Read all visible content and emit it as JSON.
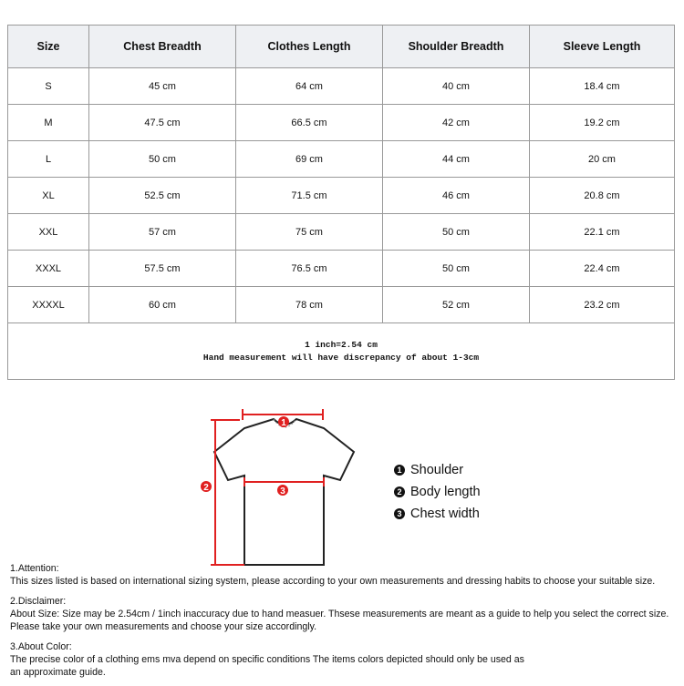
{
  "table": {
    "headers": [
      "Size",
      "Chest Breadth",
      "Clothes Length",
      "Shoulder Breadth",
      "Sleeve Length"
    ],
    "rows": [
      [
        "S",
        "45 cm",
        "64 cm",
        "40 cm",
        "18.4 cm"
      ],
      [
        "M",
        "47.5 cm",
        "66.5 cm",
        "42 cm",
        "19.2 cm"
      ],
      [
        "L",
        "50 cm",
        "69 cm",
        "44 cm",
        "20 cm"
      ],
      [
        "XL",
        "52.5 cm",
        "71.5 cm",
        "46 cm",
        "20.8 cm"
      ],
      [
        "XXL",
        "57 cm",
        "75 cm",
        "50 cm",
        "22.1 cm"
      ],
      [
        "XXXL",
        "57.5 cm",
        "76.5 cm",
        "50 cm",
        "22.4 cm"
      ],
      [
        "XXXXL",
        "60 cm",
        "78 cm",
        "52 cm",
        "23.2 cm"
      ]
    ],
    "note_line1": "1 inch=2.54 cm",
    "note_line2": "Hand measurement will have discrepancy of about 1-3cm"
  },
  "diagram": {
    "markers": [
      "1",
      "2",
      "3"
    ],
    "legend": [
      {
        "num": "1",
        "label": "Shoulder"
      },
      {
        "num": "2",
        "label": "Body length"
      },
      {
        "num": "3",
        "label": "Chest width"
      }
    ],
    "accent": "#e02020"
  },
  "notes": [
    {
      "title": "1.Attention:",
      "lines": [
        "This sizes listed is based on international sizing system, please according to your own measurements and dressing habits to choose your suitable size."
      ]
    },
    {
      "title": "2.Disclaimer:",
      "lines": [
        "About Size: Size may be 2.54cm / 1inch inaccuracy due to hand measuer. Thsese measurements are meant as a guide to help you select the correct size.",
        "Please take your own measurements and choose your size accordingly."
      ]
    },
    {
      "title": "3.About Color:",
      "lines": [
        "The precise color of a clothing ems mva depend on specific conditions The items colors depicted should only be used as",
        "an approximate guide."
      ]
    }
  ]
}
